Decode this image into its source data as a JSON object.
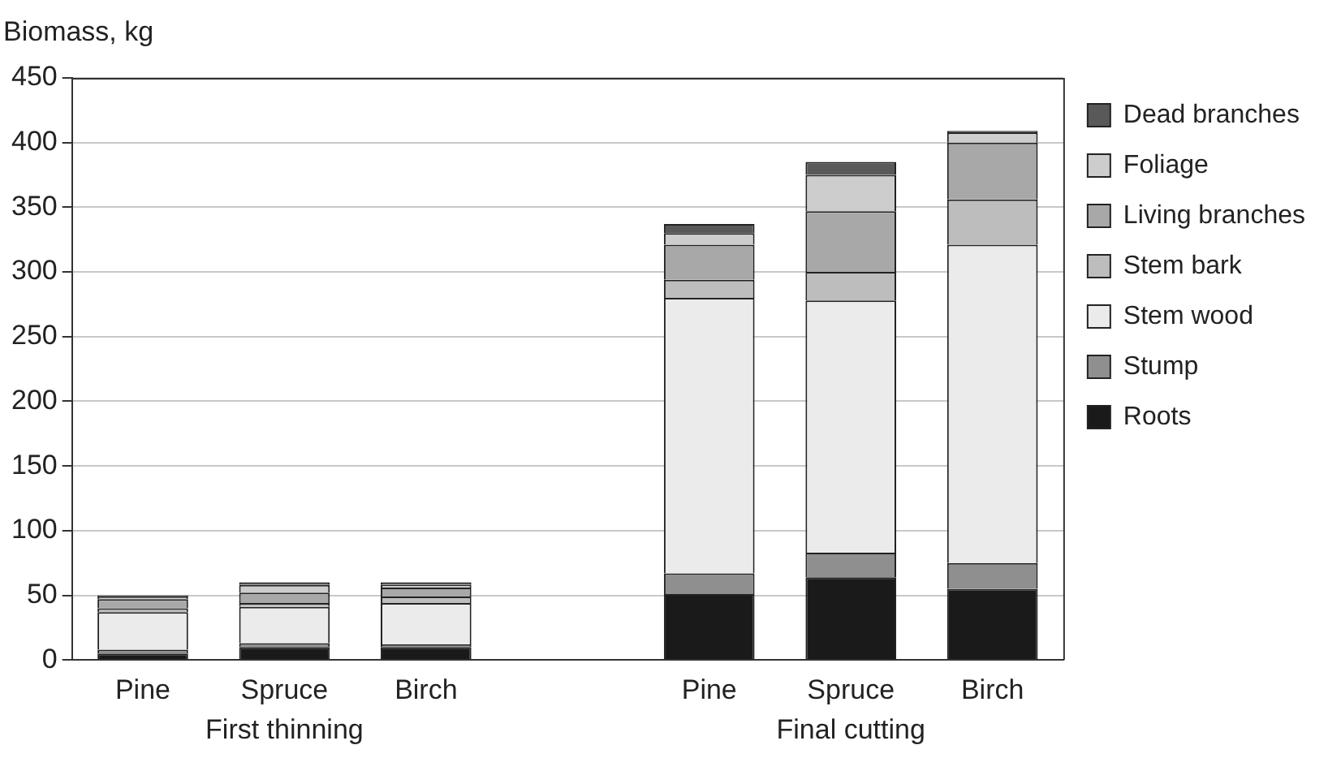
{
  "chart_data": {
    "type": "bar",
    "stacked": true,
    "ylabel": "Biomass, kg",
    "categories": [
      "Pine",
      "Spruce",
      "Birch",
      null,
      "Pine",
      "Spruce",
      "Birch"
    ],
    "series": [
      {
        "name": "Roots",
        "color": "#1a1a1a",
        "values": [
          5,
          10,
          10,
          null,
          51,
          64,
          55
        ]
      },
      {
        "name": "Stump",
        "color": "#8f8f8f",
        "values": [
          3,
          3,
          2,
          null,
          16,
          19,
          20
        ]
      },
      {
        "name": "Stem wood",
        "color": "#ebebeb",
        "values": [
          29,
          28,
          32,
          null,
          213,
          195,
          246
        ]
      },
      {
        "name": "Stem bark",
        "color": "#bdbdbd",
        "values": [
          3,
          3,
          5,
          null,
          14,
          22,
          35
        ]
      },
      {
        "name": "Living branches",
        "color": "#a8a8a8",
        "values": [
          7,
          8,
          7,
          null,
          27,
          47,
          44
        ]
      },
      {
        "name": "Foliage",
        "color": "#cdcdcd",
        "values": [
          2,
          6,
          2,
          null,
          9,
          28,
          8
        ]
      },
      {
        "name": "Dead branches",
        "color": "#595959",
        "values": [
          1,
          2,
          2,
          null,
          7,
          10,
          1
        ]
      }
    ],
    "ylim": [
      0,
      450
    ],
    "yticks": [
      0,
      50,
      100,
      150,
      200,
      250,
      300,
      350,
      400,
      450
    ],
    "grid": "y",
    "legend": "right",
    "annotations": [
      "First thinning",
      "Final cutting"
    ]
  }
}
